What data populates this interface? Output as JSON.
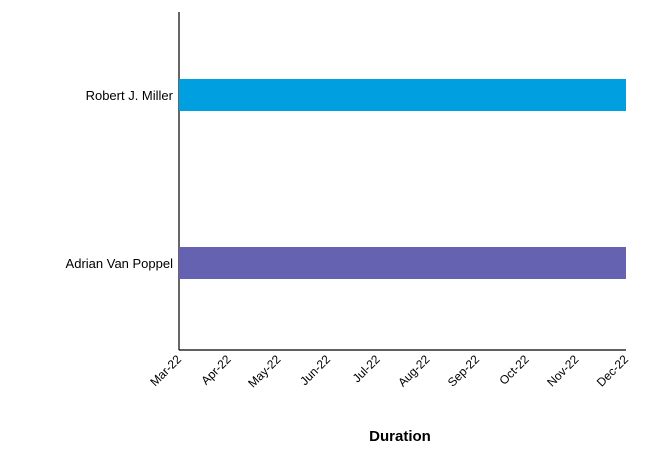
{
  "chart_data": {
    "type": "bar",
    "orientation": "horizontal",
    "title": "",
    "xlabel": "Duration",
    "ylabel": "",
    "grid": false,
    "legend": "none",
    "x_ticks": [
      "Mar-22",
      "Apr-22",
      "May-22",
      "Jun-22",
      "Jul-22",
      "Aug-22",
      "Sep-22",
      "Oct-22",
      "Nov-22",
      "Dec-22"
    ],
    "xlim": [
      "Mar-22",
      "Dec-22"
    ],
    "categories": [
      "Robert J. Miller",
      "Adrian Van Poppel"
    ],
    "bars": [
      {
        "category": "Robert J. Miller",
        "start": "Mar-22",
        "end": "Dec-22",
        "color": "#009fe0"
      },
      {
        "category": "Adrian Van Poppel",
        "start": "Mar-22",
        "end": "Dec-22",
        "color": "#6662b2"
      }
    ]
  }
}
